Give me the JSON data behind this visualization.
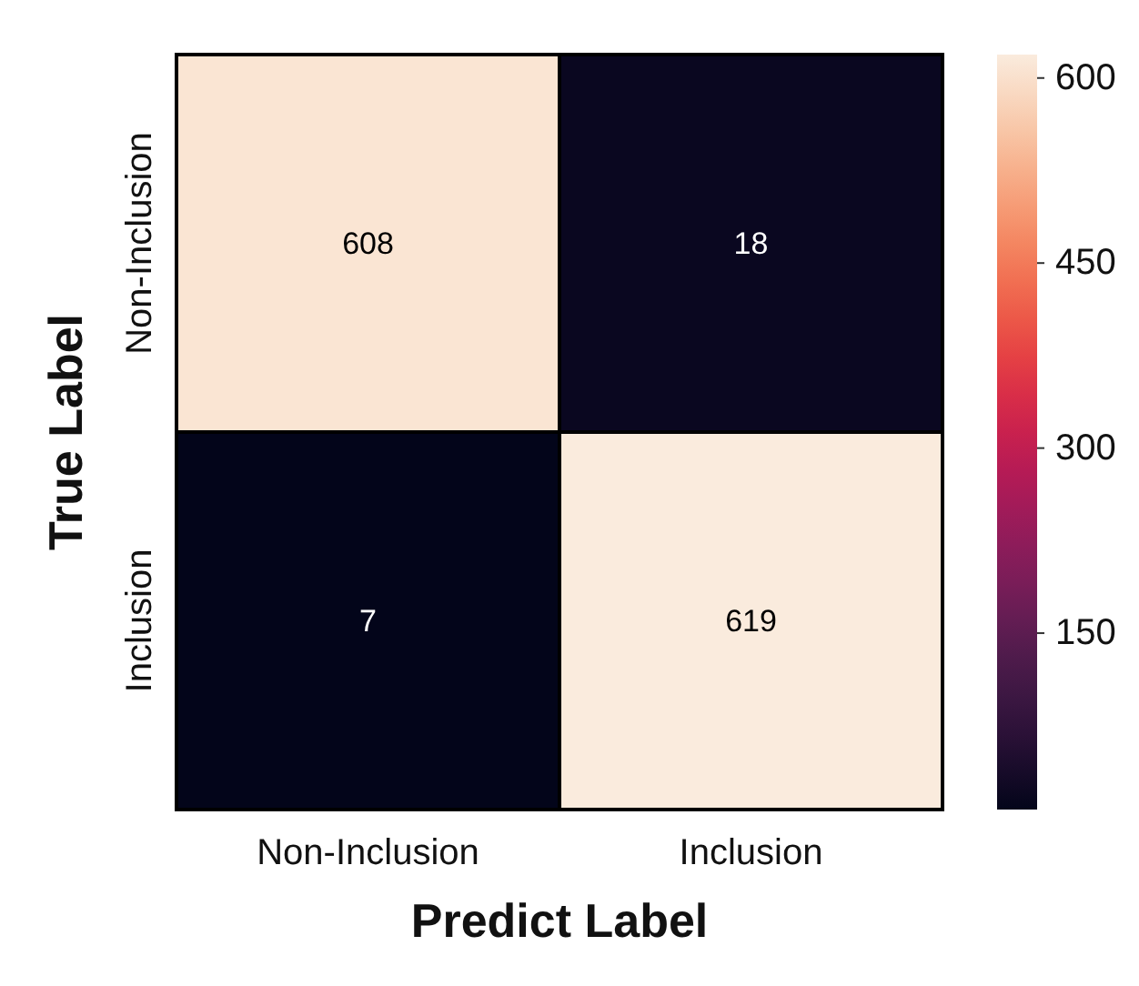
{
  "chart_data": {
    "type": "heatmap",
    "xlabel": "Predict Label",
    "ylabel": "True Label",
    "categories": [
      "Non-Inclusion",
      "Inclusion"
    ],
    "y_categories": [
      "Non-Inclusion",
      "Inclusion"
    ],
    "cells": [
      [
        608,
        18
      ],
      [
        7,
        619
      ]
    ],
    "data_labels": true,
    "clim": [
      7,
      619
    ],
    "cticks": [
      150,
      300,
      450,
      600
    ]
  }
}
